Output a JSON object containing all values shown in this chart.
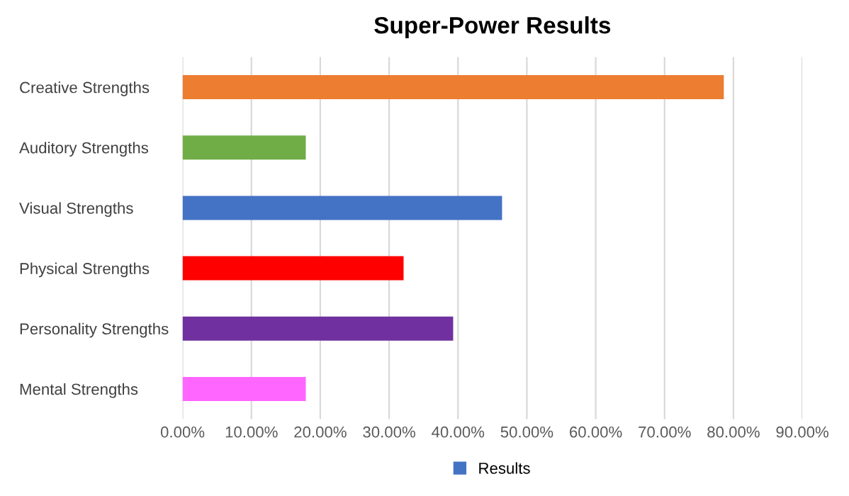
{
  "chart_data": {
    "type": "bar",
    "orientation": "horizontal",
    "title": "Super-Power Results",
    "categories": [
      "Creative Strengths",
      "Auditory Strengths",
      "Visual Strengths",
      "Physical Strengths",
      "Personality Strengths",
      "Mental Strengths"
    ],
    "series": [
      {
        "name": "Results",
        "color": "#4472c4",
        "values": [
          78.6,
          17.9,
          46.4,
          32.1,
          39.3,
          17.9
        ],
        "colors": [
          "#ed7d31",
          "#70ad47",
          "#4472c4",
          "#ff0000",
          "#7030a0",
          "#ff66ff"
        ]
      }
    ],
    "xlim": [
      0,
      90
    ],
    "xticks": [
      {
        "value": 0,
        "label": "0.00%"
      },
      {
        "value": 10,
        "label": "10.00%"
      },
      {
        "value": 20,
        "label": "20.00%"
      },
      {
        "value": 30,
        "label": "30.00%"
      },
      {
        "value": 40,
        "label": "40.00%"
      },
      {
        "value": 50,
        "label": "50.00%"
      },
      {
        "value": 60,
        "label": "60.00%"
      },
      {
        "value": 70,
        "label": "70.00%"
      },
      {
        "value": 80,
        "label": "80.00%"
      },
      {
        "value": 90,
        "label": "90.00%"
      }
    ],
    "grid": "x",
    "legend": "bottom"
  }
}
